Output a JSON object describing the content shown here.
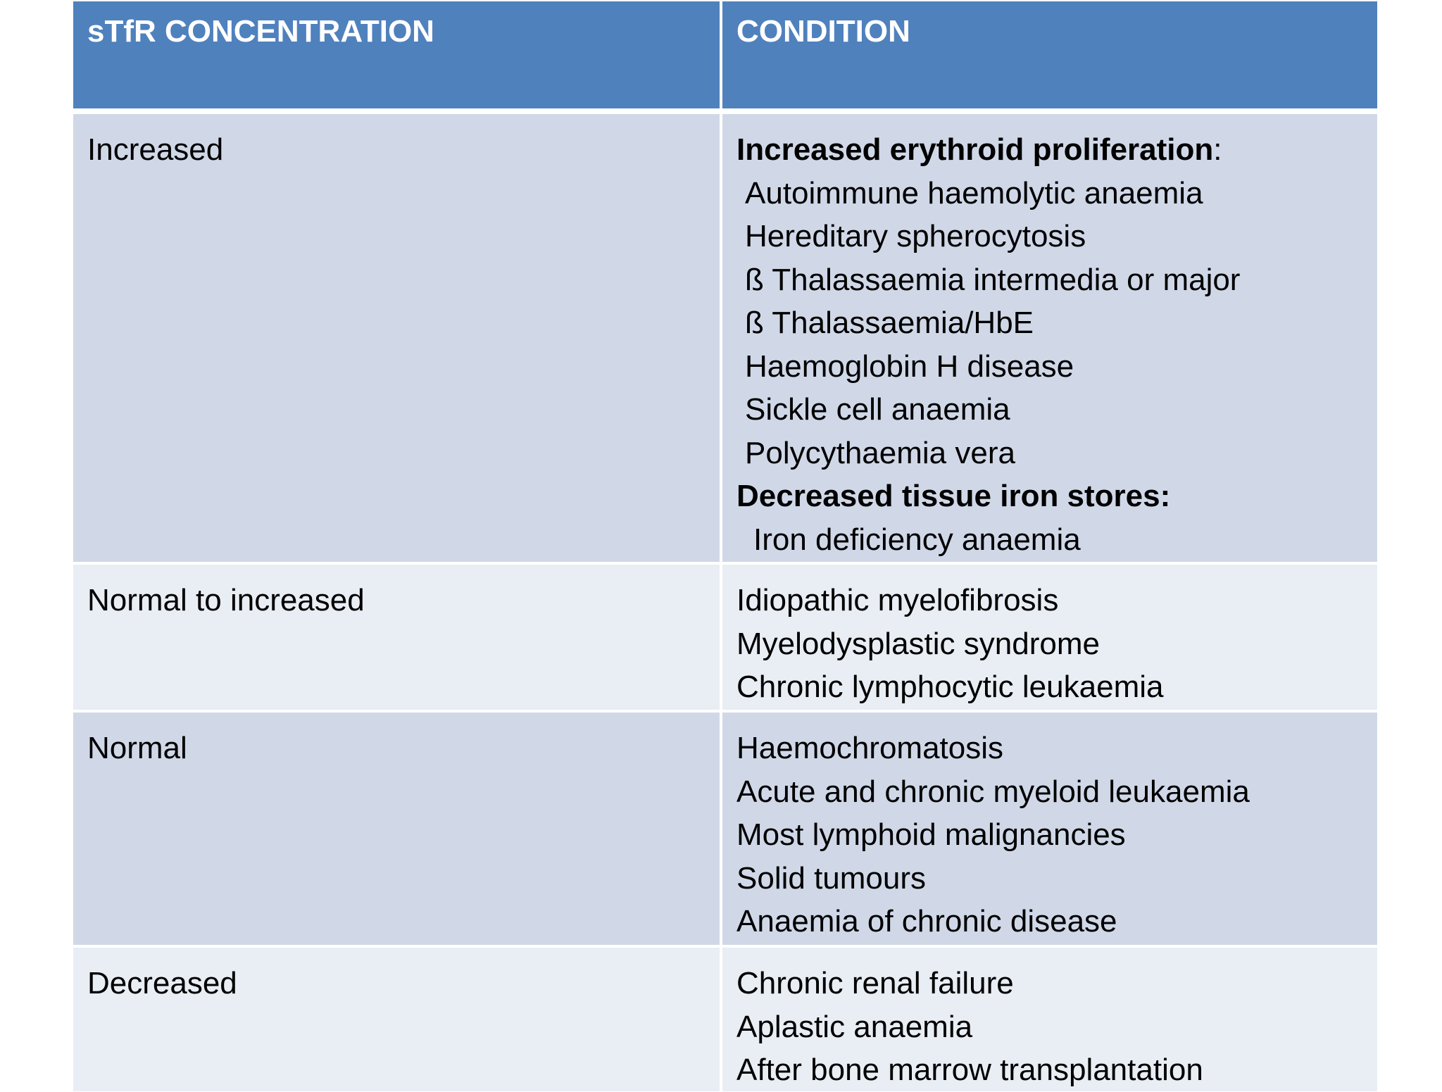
{
  "headers": {
    "concentration": "sTfR CONCENTRATION",
    "condition": "CONDITION"
  },
  "rows": [
    {
      "concentration": "Increased",
      "groups": [
        {
          "title": "Increased erythroid proliferation",
          "title_suffix": ":",
          "items": [
            "Autoimmune haemolytic anaemia",
            "Hereditary spherocytosis",
            "ß Thalassaemia intermedia or major",
            "ß Thalassaemia/HbE",
            "Haemoglobin H disease",
            "Sickle cell anaemia",
            "Polycythaemia vera"
          ]
        },
        {
          "title": "Decreased tissue iron stores:",
          "title_suffix": "",
          "items": [
            "Iron deficiency anaemia"
          ]
        }
      ]
    },
    {
      "concentration": "Normal to increased",
      "items": [
        "Idiopathic myelofibrosis",
        "Myelodysplastic syndrome",
        "Chronic lymphocytic leukaemia"
      ]
    },
    {
      "concentration": "Normal",
      "items": [
        "Haemochromatosis",
        "Acute and chronic myeloid leukaemia",
        "Most lymphoid malignancies",
        "Solid tumours",
        "Anaemia of chronic disease"
      ]
    },
    {
      "concentration": "Decreased",
      "items": [
        "Chronic renal failure",
        "Aplastic anaemia",
        "After bone marrow transplantation"
      ]
    }
  ]
}
